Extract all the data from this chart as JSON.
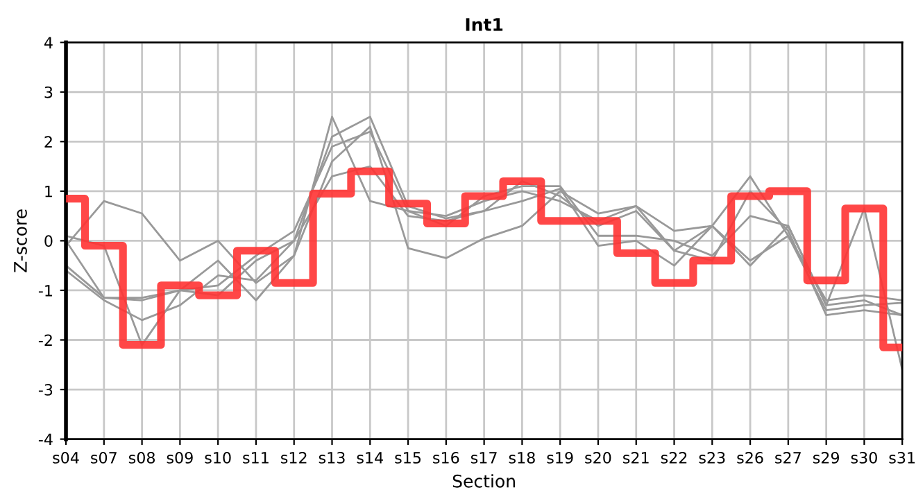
{
  "chart_data": {
    "type": "line",
    "title": "Int1",
    "xlabel": "Section",
    "ylabel": "Z-score",
    "categories": [
      "s04",
      "s07",
      "s08",
      "s09",
      "s10",
      "s11",
      "s12",
      "s13",
      "s14",
      "s15",
      "s16",
      "s17",
      "s18",
      "s19",
      "s20",
      "s21",
      "s22",
      "s23",
      "s26",
      "s27",
      "s29",
      "s30",
      "s31"
    ],
    "ylim": [
      -4,
      4
    ],
    "yticks": [
      -4,
      -3,
      -2,
      -1,
      0,
      1,
      2,
      3,
      4
    ],
    "grid": true,
    "marker": "none",
    "line_style": "solid",
    "series": [
      {
        "color": "#999999",
        "values": [
          -0.1,
          0.8,
          0.55,
          -0.4,
          0.0,
          -0.85,
          -0.3,
          1.6,
          2.3,
          -0.15,
          -0.35,
          0.05,
          0.3,
          1.0,
          0.55,
          0.7,
          -0.2,
          0.3,
          1.3,
          0.1,
          -1.2,
          -1.1,
          -1.2
        ]
      },
      {
        "color": "#999999",
        "values": [
          0.1,
          -0.1,
          -2.1,
          -1.0,
          -0.4,
          -1.2,
          -0.3,
          2.5,
          0.8,
          0.6,
          0.5,
          0.8,
          1.0,
          0.8,
          0.4,
          0.7,
          0.2,
          0.3,
          -0.5,
          0.3,
          -1.3,
          0.65,
          -2.6
        ]
      },
      {
        "color": "#999999",
        "values": [
          -0.5,
          -1.15,
          -1.15,
          -1.0,
          -1.1,
          -0.4,
          0.0,
          2.1,
          2.5,
          0.7,
          0.45,
          0.6,
          1.2,
          0.9,
          0.3,
          0.6,
          -0.2,
          -0.4,
          1.0,
          0.2,
          -1.5,
          -1.4,
          -1.5
        ]
      },
      {
        "color": "#999999",
        "values": [
          -0.6,
          -1.2,
          -1.6,
          -1.3,
          -0.7,
          -0.8,
          0.0,
          1.3,
          1.5,
          0.5,
          0.4,
          0.6,
          0.8,
          1.05,
          -0.1,
          0.0,
          -0.5,
          0.3,
          -0.4,
          0.1,
          -1.4,
          -1.3,
          -1.25
        ]
      },
      {
        "color": "#999999",
        "values": [
          0.0,
          -1.15,
          -1.2,
          -1.0,
          -0.9,
          -0.3,
          0.2,
          1.9,
          2.2,
          0.6,
          0.3,
          0.9,
          1.1,
          1.1,
          0.1,
          0.1,
          0.0,
          -0.3,
          0.5,
          0.3,
          -1.3,
          -1.2,
          -1.5
        ]
      },
      {
        "type": "step",
        "color": "#ff3333",
        "values": [
          0.85,
          -0.1,
          -2.1,
          -0.9,
          -1.1,
          -0.2,
          -0.85,
          0.95,
          1.4,
          0.75,
          0.35,
          0.9,
          1.2,
          0.4,
          0.4,
          -0.25,
          -0.85,
          -0.4,
          0.9,
          1.0,
          -0.8,
          0.65,
          -2.15
        ]
      }
    ]
  }
}
